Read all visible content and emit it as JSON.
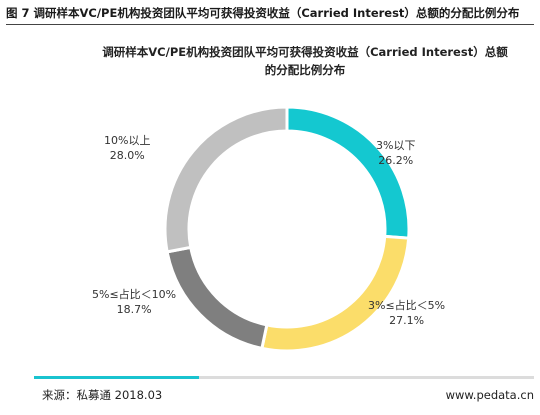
{
  "figure": {
    "header": "图 7 调研样本VC/PE机构投资团队平均可获得投资收益（Carried Interest）总额的分配比例分布"
  },
  "chart_data": {
    "type": "pie",
    "style": "donut",
    "title": "调研样本VC/PE机构投资团队平均可获得投资收益（Carried Interest）总额的分配比例分布",
    "categories": [
      "3%以下",
      "3%≤占比＜5%",
      "5%≤占比＜10%",
      "10%以上"
    ],
    "values": [
      26.2,
      27.1,
      18.7,
      28.0
    ],
    "value_labels": [
      "26.2%",
      "27.1%",
      "18.7%",
      "28.0%"
    ],
    "colors": [
      "#14c8d0",
      "#fbdd6a",
      "#7f7f7f",
      "#c0c0c0"
    ],
    "legend": "none"
  },
  "footer": {
    "source": "来源：私募通 2018.03",
    "site": "www.pedata.cn",
    "progress": 0.33
  }
}
